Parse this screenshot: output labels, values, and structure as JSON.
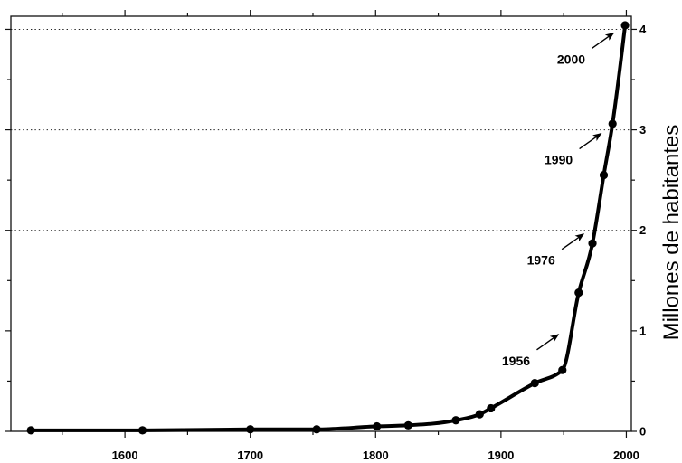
{
  "chart_data": {
    "type": "line",
    "ylabel": "Millones de habitantes",
    "y_axis_side": "right",
    "x": [
      1525,
      1614,
      1700,
      1753,
      1801,
      1826,
      1864,
      1883,
      1892,
      1927,
      1949,
      1962,
      1973,
      1982,
      1989,
      1999
    ],
    "series": [
      {
        "values": [
          0.01,
          0.01,
          0.02,
          0.02,
          0.05,
          0.06,
          0.11,
          0.17,
          0.23,
          0.48,
          0.61,
          1.38,
          1.87,
          2.55,
          3.06,
          4.04
        ],
        "color": "#000000",
        "marker": "circle"
      }
    ],
    "xlim": [
      1509,
      2004
    ],
    "ylim": [
      0,
      4.13
    ],
    "x_ticks": [
      1600,
      1700,
      1800,
      1900,
      2000
    ],
    "y_ticks": [
      0,
      1,
      2,
      3,
      4
    ],
    "hlines": [
      2,
      3,
      4
    ],
    "hline_style": "dotted",
    "grid": false,
    "annotations": [
      {
        "text": "1956",
        "x": 1956,
        "y": 1
      },
      {
        "text": "1976",
        "x": 1976,
        "y": 2
      },
      {
        "text": "1990",
        "x": 1990,
        "y": 3
      },
      {
        "text": "2000",
        "x": 2000,
        "y": 4
      }
    ]
  }
}
